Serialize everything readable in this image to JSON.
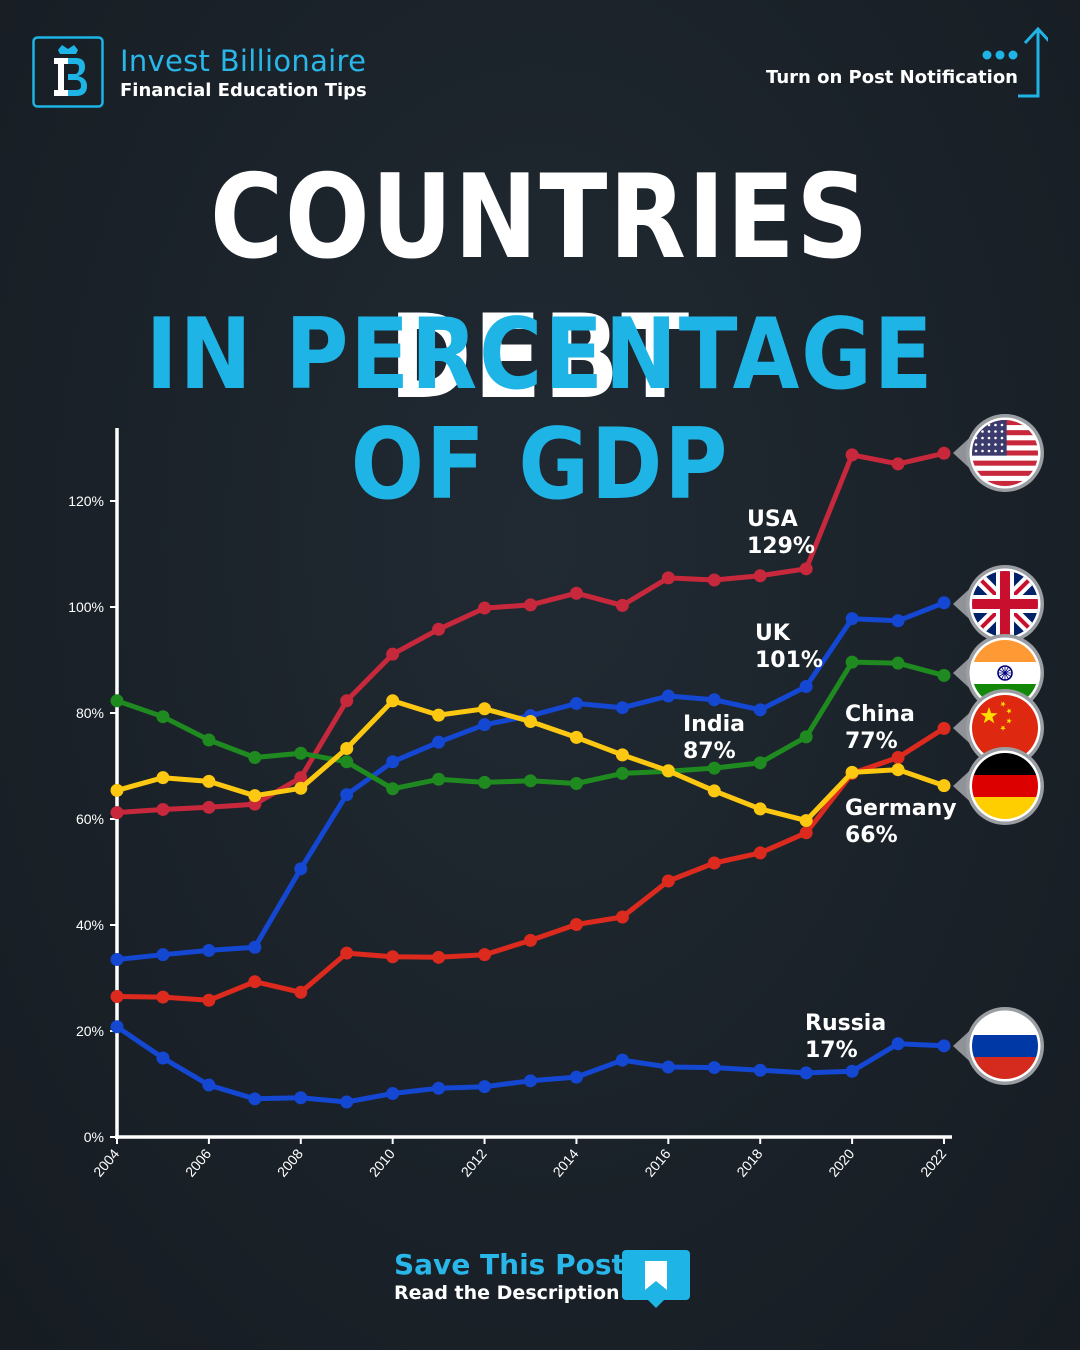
{
  "brand": {
    "name": "Invest Billionaire",
    "tagline": "Financial Education Tips",
    "logo_icon": "crown-b-logo-icon"
  },
  "notification": {
    "label": "Turn on Post Notification",
    "icon": "dots-arrow-up-icon"
  },
  "title": {
    "line1": "COUNTRIES DEBT",
    "line2": "IN PERCENTAGE OF GDP"
  },
  "footer": {
    "save": "Save This Post",
    "read": "Read the Description",
    "icon": "bookmark-icon"
  },
  "colors": {
    "accent": "#1eb4e6",
    "background": "#1b2229"
  },
  "chart_data": {
    "type": "line",
    "title": "COUNTRIES DEBT IN PERCENTAGE OF GDP",
    "x": [
      2004,
      2005,
      2006,
      2007,
      2008,
      2009,
      2010,
      2011,
      2012,
      2013,
      2014,
      2015,
      2016,
      2017,
      2018,
      2019,
      2020,
      2021,
      2022
    ],
    "xticks": [
      2004,
      2006,
      2008,
      2010,
      2012,
      2014,
      2016,
      2018,
      2020,
      2022
    ],
    "yticks": [
      0,
      20,
      40,
      60,
      80,
      100,
      120
    ],
    "ytick_labels": [
      "0%",
      "20%",
      "40%",
      "60%",
      "80%",
      "100%",
      "120%"
    ],
    "ylim": [
      0,
      130
    ],
    "grid": false,
    "series": [
      {
        "name": "USA",
        "value_label": "129%",
        "color": "#c8283c",
        "flag": "usa-flag-icon",
        "values": [
          61.2,
          61.8,
          62.2,
          62.8,
          67.8,
          82.3,
          91.1,
          95.8,
          99.8,
          100.4,
          102.6,
          100.3,
          105.5,
          105.1,
          105.9,
          107.2,
          128.7,
          127.0,
          129.0
        ]
      },
      {
        "name": "UK",
        "value_label": "101%",
        "color": "#1447d2",
        "flag": "uk-flag-icon",
        "values": [
          33.5,
          34.4,
          35.2,
          35.8,
          50.6,
          64.6,
          70.8,
          74.5,
          77.8,
          79.5,
          81.8,
          81.0,
          83.2,
          82.5,
          80.6,
          85.0,
          97.8,
          97.4,
          100.8
        ]
      },
      {
        "name": "India",
        "value_label": "87%",
        "color": "#1f8a20",
        "flag": "india-flag-icon",
        "values": [
          82.3,
          79.3,
          74.9,
          71.6,
          72.4,
          70.8,
          65.7,
          67.5,
          66.9,
          67.2,
          66.7,
          68.6,
          69.0,
          69.6,
          70.6,
          75.5,
          89.6,
          89.4,
          87.1
        ]
      },
      {
        "name": "China",
        "value_label": "77%",
        "color": "#dc2a1e",
        "flag": "china-flag-icon",
        "values": [
          26.5,
          26.4,
          25.8,
          29.3,
          27.3,
          34.7,
          34.0,
          33.9,
          34.4,
          37.1,
          40.1,
          41.5,
          48.3,
          51.7,
          53.6,
          57.4,
          68.6,
          71.6,
          77.1
        ]
      },
      {
        "name": "Germany",
        "value_label": "66%",
        "color": "#fcc812",
        "flag": "germany-flag-icon",
        "values": [
          65.4,
          67.8,
          67.1,
          64.4,
          65.8,
          73.3,
          82.3,
          79.6,
          80.8,
          78.4,
          75.4,
          72.1,
          69.1,
          65.3,
          61.9,
          59.7,
          68.8,
          69.3,
          66.3
        ]
      },
      {
        "name": "Russia",
        "value_label": "17%",
        "color": "#1447d2",
        "flag": "russia-flag-icon",
        "values": [
          20.8,
          14.9,
          9.8,
          7.2,
          7.4,
          6.6,
          8.2,
          9.2,
          9.5,
          10.6,
          11.3,
          14.5,
          13.2,
          13.1,
          12.6,
          12.1,
          12.4,
          17.6,
          17.2
        ]
      }
    ]
  }
}
